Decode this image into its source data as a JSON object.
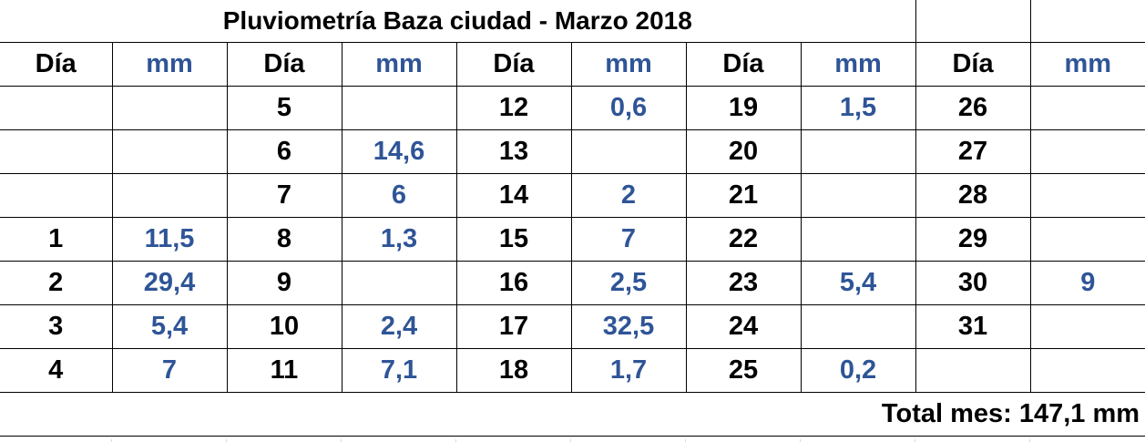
{
  "title": "Pluviometría Baza ciudad - Marzo 2018",
  "headers": [
    "Día",
    "mm",
    "Día",
    "mm",
    "Día",
    "mm",
    "Día",
    "mm",
    "Día",
    "mm"
  ],
  "rows": [
    [
      "",
      "",
      "5",
      "",
      "12",
      "0,6",
      "19",
      "1,5",
      "26",
      ""
    ],
    [
      "",
      "",
      "6",
      "14,6",
      "13",
      "",
      "20",
      "",
      "27",
      ""
    ],
    [
      "",
      "",
      "7",
      "6",
      "14",
      "2",
      "21",
      "",
      "28",
      ""
    ],
    [
      "1",
      "11,5",
      "8",
      "1,3",
      "15",
      "7",
      "22",
      "",
      "29",
      ""
    ],
    [
      "2",
      "29,4",
      "9",
      "",
      "16",
      "2,5",
      "23",
      "5,4",
      "30",
      "9"
    ],
    [
      "3",
      "5,4",
      "10",
      "2,4",
      "17",
      "32,5",
      "24",
      "",
      "31",
      ""
    ],
    [
      "4",
      "7",
      "11",
      "7,1",
      "18",
      "1,7",
      "25",
      "0,2",
      "",
      ""
    ]
  ],
  "total": "Total mes: 147,1 mm",
  "colors": {
    "day_text": "#000000",
    "mm_text": "#2f5597",
    "grid": "#000000"
  }
}
